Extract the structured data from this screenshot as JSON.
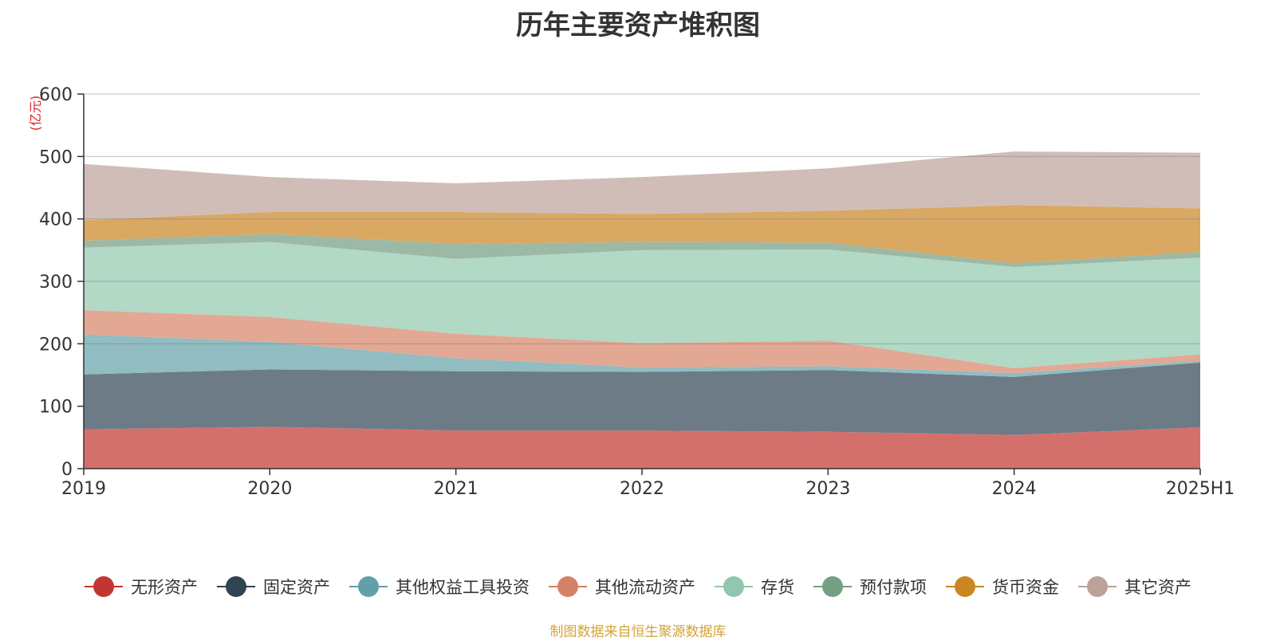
{
  "chart_data": {
    "type": "area",
    "stacked": true,
    "title": "历年主要资产堆积图",
    "unit_label": "(亿元)",
    "x": [
      "2019",
      "2020",
      "2021",
      "2022",
      "2023",
      "2024",
      "2025H1"
    ],
    "ylim": [
      0,
      600
    ],
    "yticks": [
      "0",
      "100",
      "200",
      "300",
      "400",
      "500",
      "600"
    ],
    "grid": true,
    "legend_position": "bottom",
    "series": [
      {
        "name": "无形资产",
        "color": "#c23531",
        "fill": "#d4706c",
        "values": [
          63,
          67,
          61,
          61,
          59,
          54,
          66
        ]
      },
      {
        "name": "固定资产",
        "color": "#2f4554",
        "fill": "#6d7b87",
        "values": [
          88,
          92,
          95,
          94,
          99,
          93,
          104
        ]
      },
      {
        "name": "其他权益工具投资",
        "color": "#61a0a8",
        "fill": "#90bcc2",
        "values": [
          64,
          44,
          21,
          7,
          6,
          6,
          3
        ]
      },
      {
        "name": "其他流动资产",
        "color": "#d48265",
        "fill": "#e2a893",
        "values": [
          39,
          40,
          39,
          39,
          41,
          8,
          10
        ]
      },
      {
        "name": "存货",
        "color": "#91c7ae",
        "fill": "#b2d8c6",
        "values": [
          100,
          120,
          120,
          149,
          146,
          162,
          155
        ]
      },
      {
        "name": "预付款项",
        "color": "#749f83",
        "fill": "#9bb9a5",
        "values": [
          11,
          13,
          24,
          13,
          11,
          6,
          9
        ]
      },
      {
        "name": "货币资金",
        "color": "#ca8622",
        "fill": "#d9a862",
        "values": [
          33,
          35,
          51,
          45,
          51,
          93,
          70
        ]
      },
      {
        "name": "其它资产",
        "color": "#bda29a",
        "fill": "#d0bdb7",
        "values": [
          90,
          56,
          46,
          59,
          68,
          86,
          89
        ]
      }
    ]
  },
  "source_text": "制图数据来自恒生聚源数据库"
}
